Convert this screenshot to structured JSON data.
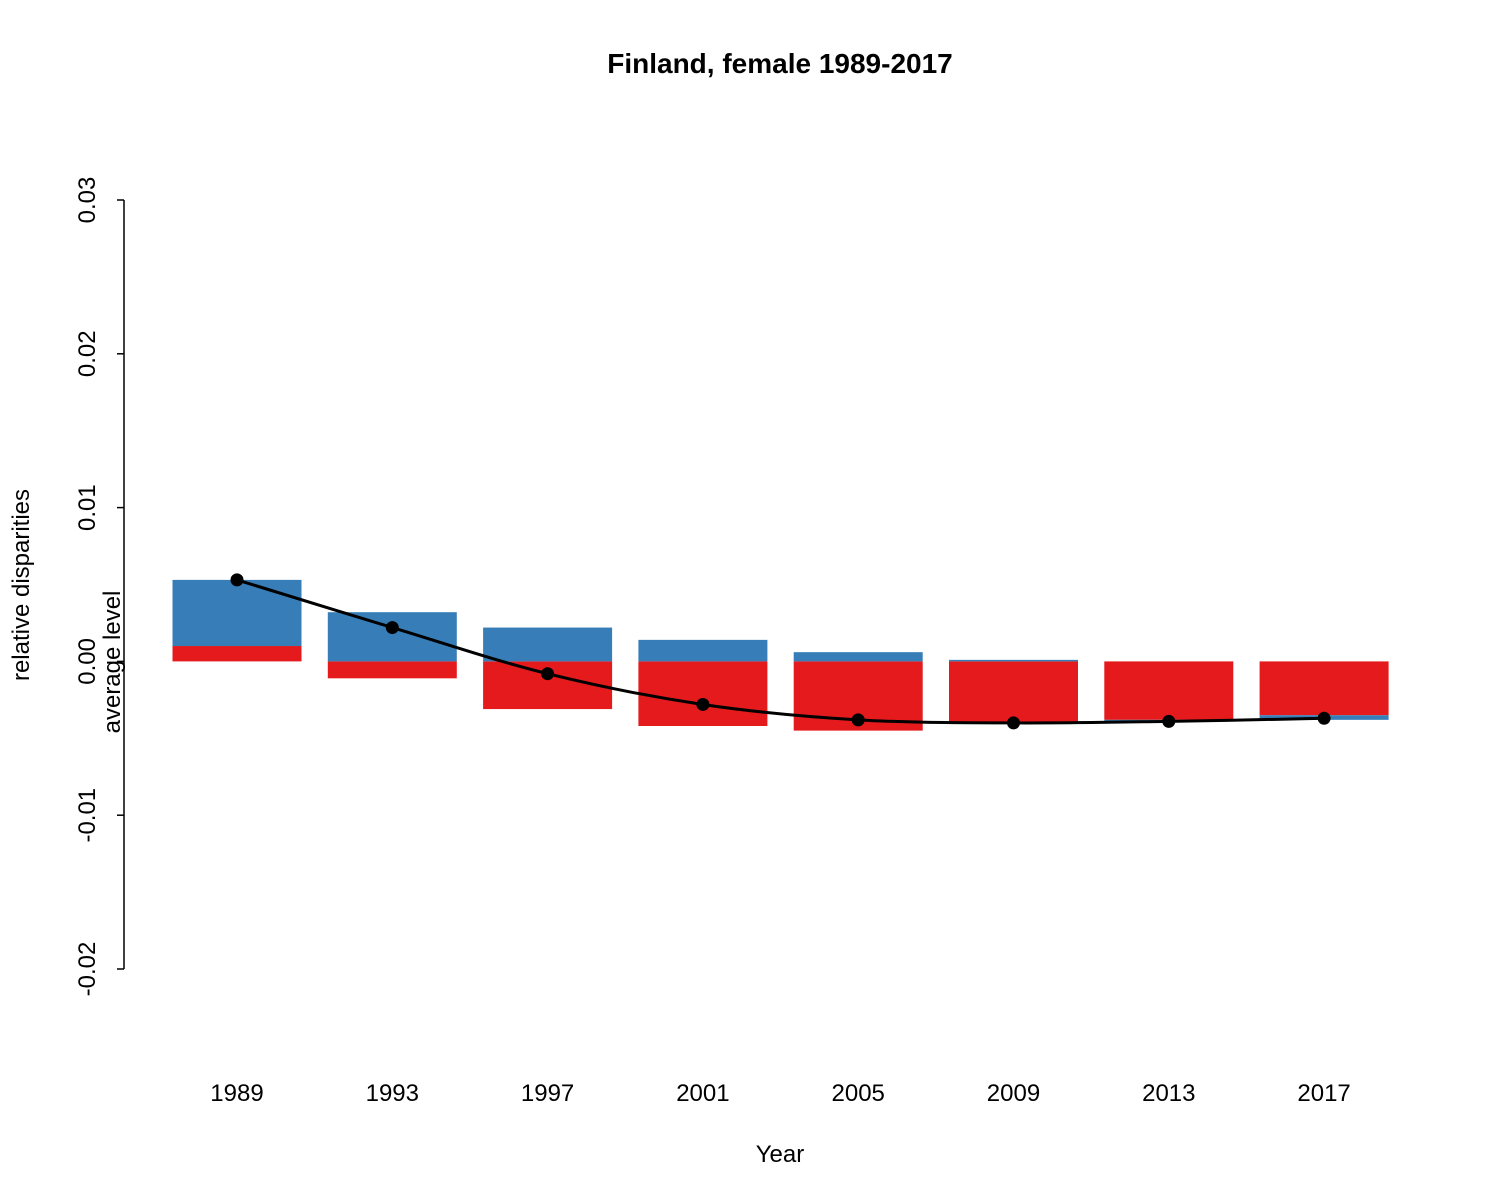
{
  "chart_data": {
    "type": "bar",
    "title": "Finland, female 1989-2017",
    "xlabel": "Year",
    "ylabel": "relative disparities",
    "ylabel2": "average level",
    "ylim": [
      -0.02,
      0.03
    ],
    "yticks": [
      0.03,
      0.02,
      0.01,
      0.0,
      -0.01,
      -0.02
    ],
    "ytick_labels": [
      "0.03",
      "0.02",
      "0.01",
      "0.00",
      "-0.01",
      "-0.02"
    ],
    "categories": [
      "1989",
      "1993",
      "1997",
      "2001",
      "2005",
      "2009",
      "2013",
      "2017"
    ],
    "series": [
      {
        "color": "#E41A1C",
        "values": [
          0.001,
          -0.0011,
          -0.0031,
          -0.0042,
          -0.0045,
          -0.004,
          -0.0038,
          -0.0035
        ]
      },
      {
        "color": "#377EB8",
        "values": [
          0.0043,
          0.0032,
          0.0022,
          0.0014,
          0.0006,
          0.0001,
          -0.0001,
          -0.0003
        ]
      },
      {
        "type": "line",
        "color": "#000000",
        "values": [
          0.0053,
          0.0022,
          -0.0008,
          -0.0028,
          -0.0038,
          -0.004,
          -0.0039,
          -0.0037
        ]
      }
    ],
    "grid": false
  }
}
